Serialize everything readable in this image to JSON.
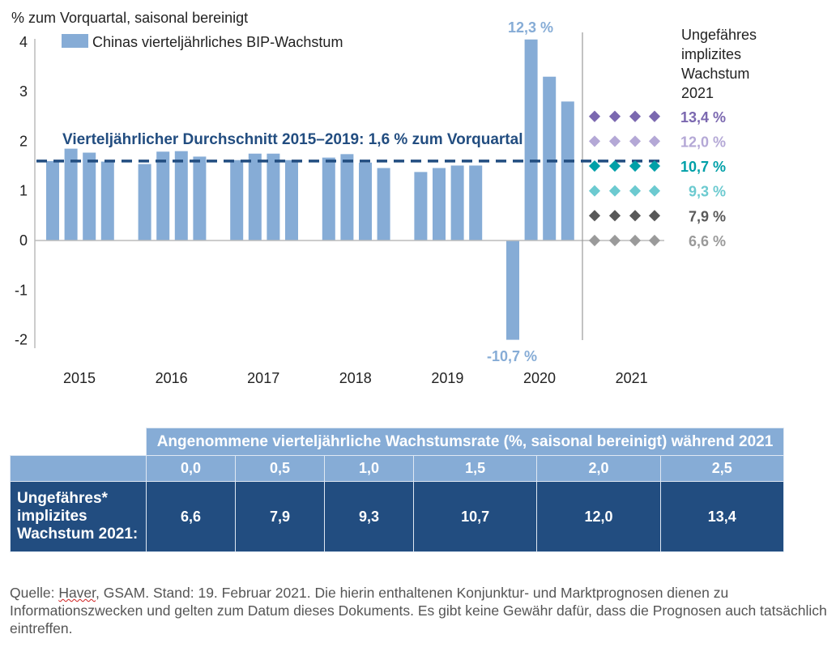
{
  "chart_data": {
    "type": "bar",
    "ylabel": "% zum Vorquartal, saisonal bereinigt",
    "ylim": [
      -2,
      4
    ],
    "yticks": [
      "4",
      "3",
      "2",
      "1",
      "0",
      "-1",
      "-2"
    ],
    "grid": false,
    "legend": {
      "position": "top-left",
      "entries": [
        "Chinas vierteljährliches BIP-Wachstum"
      ]
    },
    "categories": [
      "2015",
      "2016",
      "2017",
      "2018",
      "2019",
      "2020",
      "2021"
    ],
    "series": [
      {
        "name": "Chinas vierteljährliches BIP-Wachstum",
        "color": "#86acd6",
        "values": [
          [
            1.6,
            1.85,
            1.77,
            1.59
          ],
          [
            1.54,
            1.79,
            1.8,
            1.69
          ],
          [
            1.62,
            1.75,
            1.75,
            1.62
          ],
          [
            1.67,
            1.74,
            1.57,
            1.46
          ],
          [
            1.38,
            1.46,
            1.51,
            1.51
          ],
          [
            -10.7,
            12.3,
            3.3,
            2.8
          ]
        ]
      }
    ],
    "average_line": {
      "value": 1.6,
      "label": "Vierteljährlicher Durchschnitt 2015–2019: 1,6 % zum Vorquartal",
      "color": "#224d80"
    },
    "annotations": {
      "max_label": "12,3 %",
      "min_label": "-10,7 %"
    },
    "scenarios_title": "Ungefähres implizites Wachstum 2021",
    "scenarios": [
      {
        "quarterly": 2.5,
        "label": "13,4 %",
        "color": "#7b68b0"
      },
      {
        "quarterly": 2.0,
        "label": "12,0 %",
        "color": "#b4a8d6"
      },
      {
        "quarterly": 1.5,
        "label": "10,7 %",
        "color": "#00a0a8"
      },
      {
        "quarterly": 1.0,
        "label": "9,3 %",
        "color": "#6ccad0"
      },
      {
        "quarterly": 0.5,
        "label": "7,9 %",
        "color": "#595959"
      },
      {
        "quarterly": 0.0,
        "label": "6,6 %",
        "color": "#9a9a9a"
      }
    ]
  },
  "table": {
    "header": "Angenommene vierteljährliche Wachstumsrate (%, saisonal bereinigt) während 2021",
    "columns": [
      "0,0",
      "0,5",
      "1,0",
      "1,5",
      "2,0",
      "2,5"
    ],
    "row_label": [
      "Ungefähres*",
      "implizites",
      "Wachstum 2021:"
    ],
    "values": [
      "6,6",
      "7,9",
      "9,3",
      "10,7",
      "12,0",
      "13,4"
    ]
  },
  "footer": {
    "source_word": "Haver",
    "text": ", GSAM. Stand: 19. Februar 2021. Die hierin enthaltenen Konjunktur- und Marktprognosen dienen zu Informationszwecken und gelten zum Datum dieses Dokuments. Es gibt keine Gewähr dafür, dass die Prognosen auch tatsächlich eintreffen.",
    "prefix": "Quelle: "
  }
}
